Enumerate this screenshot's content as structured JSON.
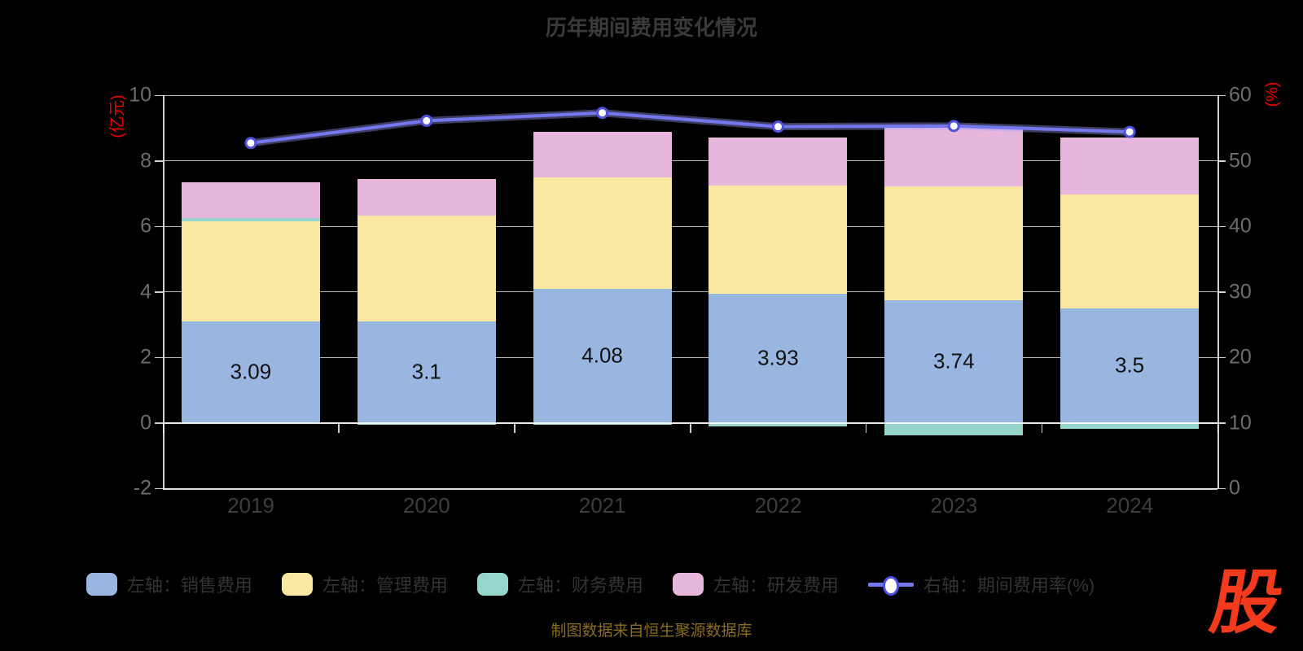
{
  "title": "历年期间费用变化情况",
  "source_note": "制图数据来自恒生聚源数据库",
  "logo_text": "股",
  "colors": {
    "background": "#000000",
    "title_text": "#3a3a3a",
    "axis_name_red": "#ee0000",
    "y_tick_label": "#6d6d6d",
    "x_tick_label": "#3d3d3d",
    "bar_label": "#111111",
    "legend_text": "#333333",
    "source_text": "#8a6d1f",
    "logo_red": "#f23a1d",
    "grid_line": "rgba(255,255,255,0.72)"
  },
  "left_axis": {
    "name": "(亿元)",
    "min": -2,
    "max": 10,
    "tick_step": 2,
    "tick_labels": [
      "10",
      "8",
      "6",
      "4",
      "2",
      "0",
      "-2"
    ]
  },
  "right_axis": {
    "name": "(%)",
    "min": 0,
    "max": 60,
    "tick_step": 10,
    "tick_labels": [
      "60",
      "50",
      "40",
      "30",
      "20",
      "10",
      "0"
    ]
  },
  "chart_data": {
    "type": "bar",
    "subtype": "stacked-bar-with-line",
    "title": "历年期间费用变化情况",
    "categories": [
      "2019",
      "2020",
      "2021",
      "2022",
      "2023",
      "2024"
    ],
    "left_ylim": [
      -2,
      10
    ],
    "right_ylim": [
      0,
      60
    ],
    "grid": true,
    "legend_position": "bottom",
    "bar_series": [
      {
        "name": "左轴：销售费用",
        "color": "#99b6e1",
        "values": [
          3.09,
          3.1,
          4.08,
          3.93,
          3.74,
          3.5
        ],
        "data_labels": [
          "3.09",
          "3.1",
          "4.08",
          "3.93",
          "3.74",
          "3.5"
        ]
      },
      {
        "name": "左轴：管理费用",
        "color": "#f8e8a2",
        "values": [
          3.05,
          3.22,
          3.42,
          3.3,
          3.47,
          3.46
        ]
      },
      {
        "name": "左轴：财务费用",
        "color": "#96d5cb",
        "values": [
          0.1,
          -0.05,
          -0.06,
          -0.12,
          -0.38,
          -0.18
        ]
      },
      {
        "name": "左轴：研发费用",
        "color": "#e7b6dc",
        "values": [
          1.1,
          1.12,
          1.38,
          1.48,
          1.8,
          1.76
        ]
      }
    ],
    "line_series": {
      "name": "右轴：期间费用率(%)",
      "axis": "right",
      "color": "#7577ee",
      "dot_stroke": "#4f52e0",
      "dot_fill": "#ffffff",
      "values": [
        52.7,
        56.1,
        57.3,
        55.2,
        55.3,
        54.4
      ]
    }
  }
}
